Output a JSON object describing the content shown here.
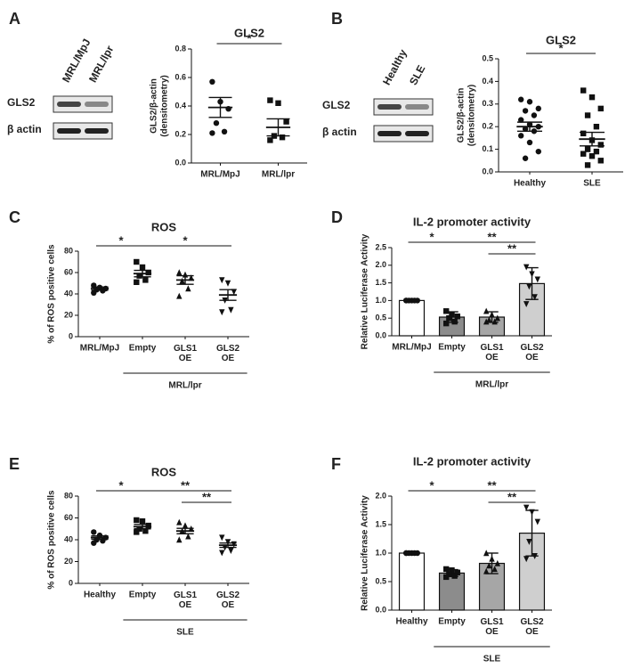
{
  "panel_labels": [
    "A",
    "B",
    "C",
    "D",
    "E",
    "F"
  ],
  "blots": [
    {
      "columns": [
        "MRL/MpJ",
        "MRL/lpr"
      ],
      "rows": [
        "GLS2",
        "β actin"
      ]
    },
    {
      "columns": [
        "Healthy",
        "SLE"
      ],
      "rows": [
        "GLS2",
        "β actin"
      ]
    }
  ],
  "chart_data": [
    {
      "type": "dot",
      "title": "GLS2",
      "ylabel": [
        "GLS2/β-actin",
        "(densitometry)"
      ],
      "categories": [
        "MRL/MpJ",
        "MRL/lpr"
      ],
      "values": [
        0.39,
        0.25
      ],
      "errors": [
        0.07,
        0.06
      ],
      "points": [
        [
          0.57,
          0.43,
          0.38,
          0.28,
          0.22,
          0.21
        ],
        [
          0.44,
          0.42,
          0.29,
          0.19,
          0.18,
          0.16
        ]
      ],
      "markers": [
        "circle",
        "square"
      ],
      "ylim": [
        0,
        0.8
      ],
      "yticks": [
        {
          "value": 0,
          "label": "0.0"
        },
        {
          "value": 0.2,
          "label": "0.2"
        },
        {
          "value": 0.4,
          "label": "0.4"
        },
        {
          "value": 0.6,
          "label": "0.6"
        },
        {
          "value": 0.8,
          "label": "0.8"
        }
      ],
      "significance": [
        {
          "from": 0,
          "to": 1,
          "label": "*"
        }
      ]
    },
    {
      "type": "dot",
      "title": "GLS2",
      "ylabel": [
        "GLS2/β-actin",
        "(densitometry)"
      ],
      "categories": [
        "Healthy",
        "SLE"
      ],
      "values": [
        0.2,
        0.145
      ],
      "errors": [
        0.02,
        0.03
      ],
      "points": [
        [
          0.32,
          0.31,
          0.28,
          0.27,
          0.25,
          0.23,
          0.21,
          0.2,
          0.19,
          0.18,
          0.16,
          0.13,
          0.09,
          0.06
        ],
        [
          0.36,
          0.33,
          0.28,
          0.25,
          0.2,
          0.17,
          0.14,
          0.12,
          0.1,
          0.09,
          0.08,
          0.07,
          0.05,
          0.03
        ]
      ],
      "markers": [
        "circle",
        "square"
      ],
      "ylim": [
        0,
        0.5
      ],
      "yticks": [
        {
          "value": 0,
          "label": "0.0"
        },
        {
          "value": 0.1,
          "label": "0.1"
        },
        {
          "value": 0.2,
          "label": "0.2"
        },
        {
          "value": 0.3,
          "label": "0.3"
        },
        {
          "value": 0.4,
          "label": "0.4"
        },
        {
          "value": 0.5,
          "label": "0.5"
        }
      ],
      "significance": [
        {
          "from": 0,
          "to": 1,
          "label": "*"
        }
      ]
    },
    {
      "type": "dot",
      "title": "ROS",
      "ylabel": [
        "% of ROS positive cells"
      ],
      "categories": [
        "MRL/MpJ",
        "Empty",
        "GLS1 OE",
        "GLS2 OE"
      ],
      "values": [
        45,
        59,
        53,
        39
      ],
      "errors": [
        1.5,
        3,
        4,
        5
      ],
      "points": [
        [
          48,
          46,
          45,
          44,
          43,
          41
        ],
        [
          70,
          65,
          60,
          57,
          53,
          51
        ],
        [
          60,
          58,
          55,
          52,
          45,
          38
        ],
        [
          53,
          50,
          42,
          34,
          25,
          23
        ]
      ],
      "markers": [
        "circle",
        "square",
        "triangle",
        "triangle-down"
      ],
      "ylim": [
        0,
        80
      ],
      "yticks": [
        0,
        20,
        40,
        60,
        80
      ],
      "significance": [
        {
          "from": 0,
          "to": 1,
          "label": "*"
        },
        {
          "from": 1,
          "to": 3,
          "label": "*"
        }
      ],
      "group": {
        "label": "MRL/lpr",
        "from": 1,
        "to": 3
      }
    },
    {
      "type": "bar",
      "title": "IL-2 promoter activity",
      "ylabel": [
        "Relative Luciferase Activity"
      ],
      "categories": [
        "MRL/MpJ",
        "Empty",
        "GLS1 OE",
        "GLS2 OE"
      ],
      "values": [
        1.0,
        0.53,
        0.53,
        1.48
      ],
      "errors": [
        0,
        0.15,
        0.15,
        0.45
      ],
      "points": [
        [
          1,
          1,
          1,
          1,
          1,
          1
        ],
        [
          0.7,
          0.6,
          0.55,
          0.5,
          0.4,
          0.35
        ],
        [
          0.7,
          0.6,
          0.5,
          0.45,
          0.4,
          0.4
        ],
        [
          1.95,
          1.75,
          1.6,
          1.4,
          1.1,
          0.9
        ]
      ],
      "markers": [
        "circle",
        "square",
        "triangle",
        "triangle-down"
      ],
      "colors": [
        "#ffffff",
        "#8c8c8c",
        "#a6a6a6",
        "#cfcfcf"
      ],
      "ylim": [
        0,
        2.5
      ],
      "yticks": [
        {
          "value": 0,
          "label": "0.0"
        },
        {
          "value": 0.5,
          "label": "0.5"
        },
        {
          "value": 1,
          "label": "1.0"
        },
        {
          "value": 1.5,
          "label": "1.5"
        },
        {
          "value": 2,
          "label": "2.0"
        },
        {
          "value": 2.5,
          "label": "2.5"
        }
      ],
      "significance": [
        {
          "from": 0,
          "to": 1,
          "label": "*"
        },
        {
          "from": 1,
          "to": 3,
          "label": "**"
        },
        {
          "from": 2,
          "to": 3,
          "label": "**"
        }
      ],
      "group": {
        "label": "MRL/lpr",
        "from": 1,
        "to": 3
      }
    },
    {
      "type": "dot",
      "title": "ROS",
      "ylabel": [
        "% of ROS positive cells"
      ],
      "categories": [
        "Healthy",
        "Empty",
        "GLS1 OE",
        "GLS2 OE"
      ],
      "values": [
        42,
        52,
        48,
        35
      ],
      "errors": [
        1.5,
        2,
        2.5,
        2
      ],
      "points": [
        [
          47,
          44,
          42,
          40,
          39,
          37
        ],
        [
          58,
          57,
          53,
          50,
          48,
          47
        ],
        [
          56,
          53,
          50,
          48,
          43,
          40
        ],
        [
          42,
          38,
          36,
          33,
          30,
          28
        ]
      ],
      "markers": [
        "circle",
        "square",
        "triangle",
        "triangle-down"
      ],
      "ylim": [
        0,
        80
      ],
      "yticks": [
        0,
        20,
        40,
        60,
        80
      ],
      "significance": [
        {
          "from": 0,
          "to": 1,
          "label": "*"
        },
        {
          "from": 1,
          "to": 3,
          "label": "**"
        },
        {
          "from": 2,
          "to": 3,
          "label": "**"
        }
      ],
      "group": {
        "label": "SLE",
        "from": 1,
        "to": 3
      }
    },
    {
      "type": "bar",
      "title": "IL-2 promoter activity",
      "ylabel": [
        "Relative Luciferase Activity"
      ],
      "categories": [
        "Healthy",
        "Empty",
        "GLS1 OE",
        "GLS2 OE"
      ],
      "values": [
        1.0,
        0.65,
        0.82,
        1.35
      ],
      "errors": [
        0,
        0.06,
        0.18,
        0.4
      ],
      "points": [
        [
          1,
          1,
          1,
          1,
          1,
          1
        ],
        [
          0.72,
          0.7,
          0.66,
          0.63,
          0.6,
          0.58
        ],
        [
          1.0,
          0.9,
          0.82,
          0.78,
          0.72,
          0.68
        ],
        [
          1.8,
          1.72,
          1.55,
          1.2,
          0.95,
          0.9
        ]
      ],
      "markers": [
        "circle",
        "square",
        "triangle",
        "triangle-down"
      ],
      "colors": [
        "#ffffff",
        "#8c8c8c",
        "#a6a6a6",
        "#cfcfcf"
      ],
      "ylim": [
        0,
        2.0
      ],
      "yticks": [
        {
          "value": 0,
          "label": "0.0"
        },
        {
          "value": 0.5,
          "label": "0.5"
        },
        {
          "value": 1,
          "label": "1.0"
        },
        {
          "value": 1.5,
          "label": "1.5"
        },
        {
          "value": 2,
          "label": "2.0"
        }
      ],
      "significance": [
        {
          "from": 0,
          "to": 1,
          "label": "*"
        },
        {
          "from": 1,
          "to": 3,
          "label": "**"
        },
        {
          "from": 2,
          "to": 3,
          "label": "**"
        }
      ],
      "group": {
        "label": "SLE",
        "from": 1,
        "to": 3
      }
    }
  ]
}
